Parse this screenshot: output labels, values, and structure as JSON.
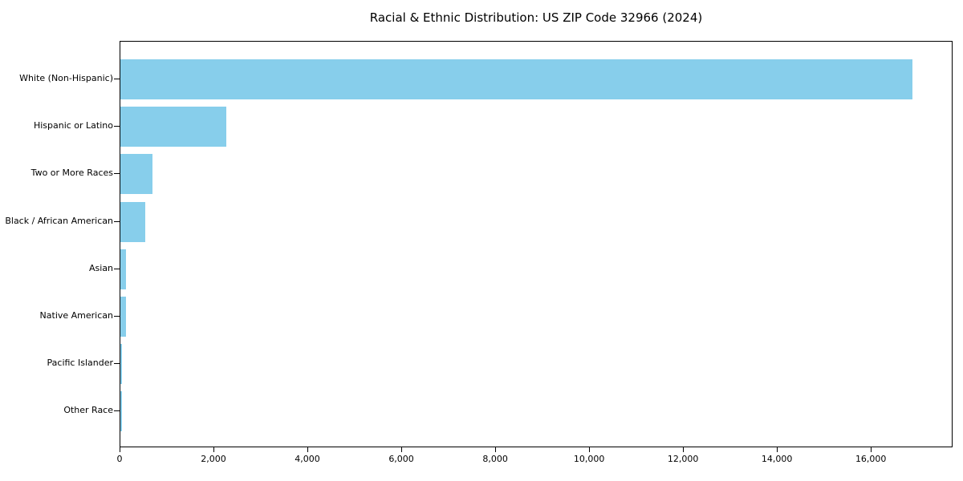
{
  "chart_data": {
    "type": "bar",
    "orientation": "horizontal",
    "title": "Racial & Ethnic Distribution: US ZIP Code 32966 (2024)",
    "categories": [
      "White (Non-Hispanic)",
      "Hispanic or Latino",
      "Two or More Races",
      "Black / African American",
      "Asian",
      "Native American",
      "Pacific Islander",
      "Other Race"
    ],
    "values": [
      16870,
      2250,
      690,
      530,
      120,
      120,
      30,
      40
    ],
    "xlabel": "",
    "ylabel": "",
    "xlim": [
      0,
      17740
    ],
    "xticks": [
      0,
      2000,
      4000,
      6000,
      8000,
      10000,
      12000,
      14000,
      16000
    ],
    "xtick_labels": [
      "0",
      "2,000",
      "4,000",
      "6,000",
      "8,000",
      "10,000",
      "12,000",
      "14,000",
      "16,000"
    ],
    "bar_color": "#87CEEB",
    "axis_color": "#000000",
    "grid": false,
    "legend": null
  }
}
